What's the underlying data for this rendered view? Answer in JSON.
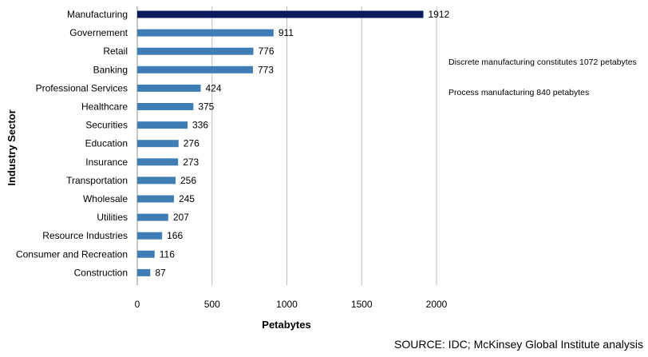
{
  "chart_data": {
    "type": "bar",
    "orientation": "horizontal",
    "categories": [
      "Manufacturing",
      "Governement",
      "Retail",
      "Banking",
      "Professional Services",
      "Healthcare",
      "Securities",
      "Education",
      "Insurance",
      "Transportation",
      "Wholesale",
      "Utilities",
      "Resource Industries",
      "Consumer and Recreation",
      "Construction"
    ],
    "values": [
      1912,
      911,
      776,
      773,
      424,
      375,
      336,
      276,
      273,
      256,
      245,
      207,
      166,
      116,
      87
    ],
    "xlabel": "Petabytes",
    "ylabel": "Industry Sector",
    "xlim": [
      0,
      2000
    ],
    "xticks": [
      0,
      500,
      1000,
      1500,
      2000
    ],
    "grid": "vertical",
    "highlight_color": "#0b1a5c",
    "bar_color": "#3f7db5"
  },
  "annotations": [
    "Discrete manufacturing constitutes 1072 petabytes",
    "Process manufacturing 840 petabytes"
  ],
  "source": "SOURCE: IDC; McKinsey Global Institute analysis"
}
